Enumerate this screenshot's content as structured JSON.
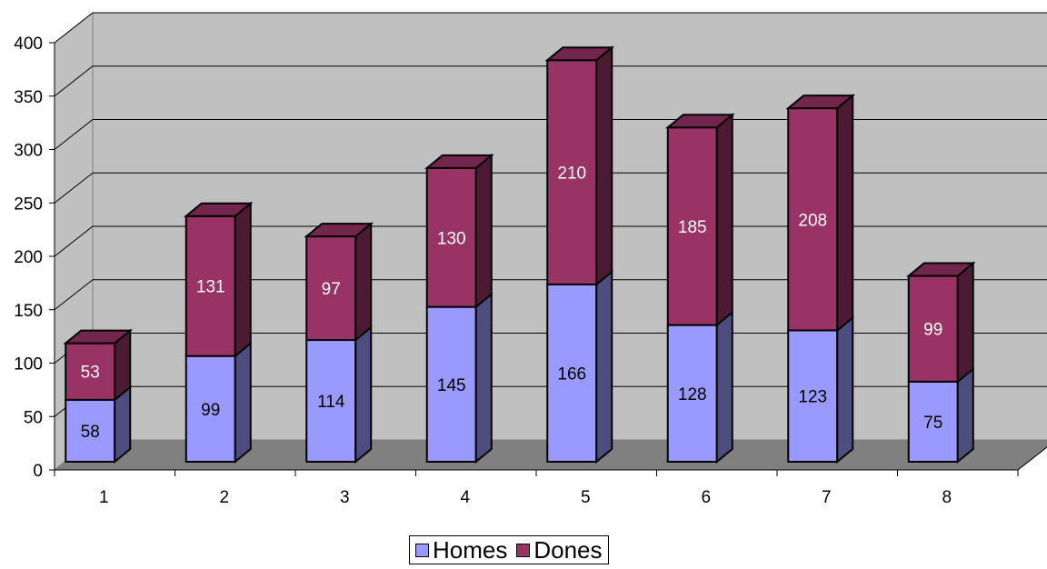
{
  "chart_data": {
    "type": "bar",
    "stacked": true,
    "three_d": true,
    "categories": [
      "1",
      "2",
      "3",
      "4",
      "5",
      "6",
      "7",
      "8"
    ],
    "series": [
      {
        "name": "Homes",
        "values": [
          58,
          99,
          114,
          145,
          166,
          128,
          123,
          75
        ],
        "color": "#9999ff"
      },
      {
        "name": "Dones",
        "values": [
          53,
          131,
          97,
          130,
          210,
          185,
          208,
          99
        ],
        "color": "#993366"
      }
    ],
    "ylim": [
      0,
      400
    ],
    "yticks": [
      0,
      50,
      100,
      150,
      200,
      250,
      300,
      350,
      400
    ],
    "grid": true,
    "legend_position": "bottom",
    "wall_color": "#c0c0c0",
    "floor_color": "#808080"
  }
}
